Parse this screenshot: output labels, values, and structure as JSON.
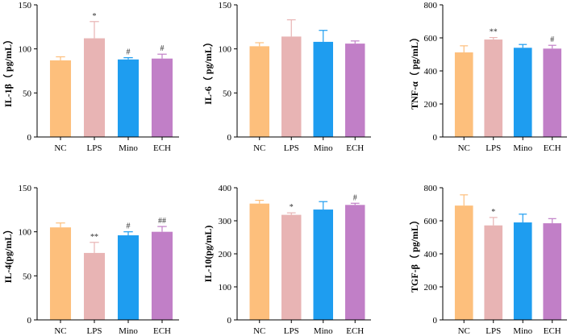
{
  "chart_data": [
    {
      "type": "bar",
      "title": "",
      "xlabel": "",
      "ylabel": "IL-1β（ pg/mL）",
      "categories": [
        "NC",
        "LPS",
        "Mino",
        "ECH"
      ],
      "values": [
        87,
        112,
        88,
        89
      ],
      "errors": [
        4,
        19,
        2,
        5
      ],
      "significance": [
        "",
        "*",
        "#",
        "#"
      ],
      "colors": [
        "#FDBF7C",
        "#E8B4B4",
        "#1E9DF0",
        "#C17FC7"
      ],
      "ylim": [
        0,
        150
      ],
      "yticks": [
        0,
        50,
        100,
        150
      ]
    },
    {
      "type": "bar",
      "title": "",
      "xlabel": "",
      "ylabel": "IL-6（ pg/mL）",
      "categories": [
        "NC",
        "LPS",
        "Mino",
        "ECH"
      ],
      "values": [
        103,
        114,
        108,
        106
      ],
      "errors": [
        4,
        19,
        13,
        3
      ],
      "significance": [
        "",
        "",
        "",
        ""
      ],
      "colors": [
        "#FDBF7C",
        "#E8B4B4",
        "#1E9DF0",
        "#C17FC7"
      ],
      "ylim": [
        0,
        150
      ],
      "yticks": [
        0,
        50,
        100,
        150
      ]
    },
    {
      "type": "bar",
      "title": "",
      "xlabel": "",
      "ylabel": "TNF-α（ pg/mL）",
      "categories": [
        "NC",
        "LPS",
        "Mino",
        "ECH"
      ],
      "values": [
        512,
        590,
        540,
        535
      ],
      "errors": [
        40,
        12,
        20,
        20
      ],
      "significance": [
        "",
        "**",
        "",
        "#"
      ],
      "colors": [
        "#FDBF7C",
        "#E8B4B4",
        "#1E9DF0",
        "#C17FC7"
      ],
      "ylim": [
        0,
        800
      ],
      "yticks": [
        0,
        200,
        400,
        600,
        800
      ]
    },
    {
      "type": "bar",
      "title": "",
      "xlabel": "",
      "ylabel": "IL-4(pg/mL）",
      "categories": [
        "NC",
        "LPS",
        "Mino",
        "ECH"
      ],
      "values": [
        105,
        76,
        96,
        100
      ],
      "errors": [
        5,
        12,
        4,
        6
      ],
      "significance": [
        "",
        "**",
        "#",
        "##"
      ],
      "colors": [
        "#FDBF7C",
        "#E8B4B4",
        "#1E9DF0",
        "#C17FC7"
      ],
      "ylim": [
        0,
        150
      ],
      "yticks": [
        0,
        50,
        100,
        150
      ]
    },
    {
      "type": "bar",
      "title": "",
      "xlabel": "",
      "ylabel": "IL-10(pg/mL)",
      "categories": [
        "NC",
        "LPS",
        "Mino",
        "ECH"
      ],
      "values": [
        352,
        318,
        334,
        348
      ],
      "errors": [
        10,
        6,
        24,
        5
      ],
      "significance": [
        "",
        "*",
        "",
        "#"
      ],
      "colors": [
        "#FDBF7C",
        "#E8B4B4",
        "#1E9DF0",
        "#C17FC7"
      ],
      "ylim": [
        0,
        400
      ],
      "yticks": [
        0,
        100,
        200,
        300,
        400
      ]
    },
    {
      "type": "bar",
      "title": "",
      "xlabel": "",
      "ylabel": "TGF-β（ pg/mL）",
      "categories": [
        "NC",
        "LPS",
        "Mino",
        "ECH"
      ],
      "values": [
        692,
        572,
        590,
        585
      ],
      "errors": [
        65,
        48,
        50,
        28
      ],
      "significance": [
        "",
        "*",
        "",
        ""
      ],
      "colors": [
        "#FDBF7C",
        "#E8B4B4",
        "#1E9DF0",
        "#C17FC7"
      ],
      "ylim": [
        0,
        800
      ],
      "yticks": [
        0,
        200,
        400,
        600,
        800
      ]
    }
  ]
}
